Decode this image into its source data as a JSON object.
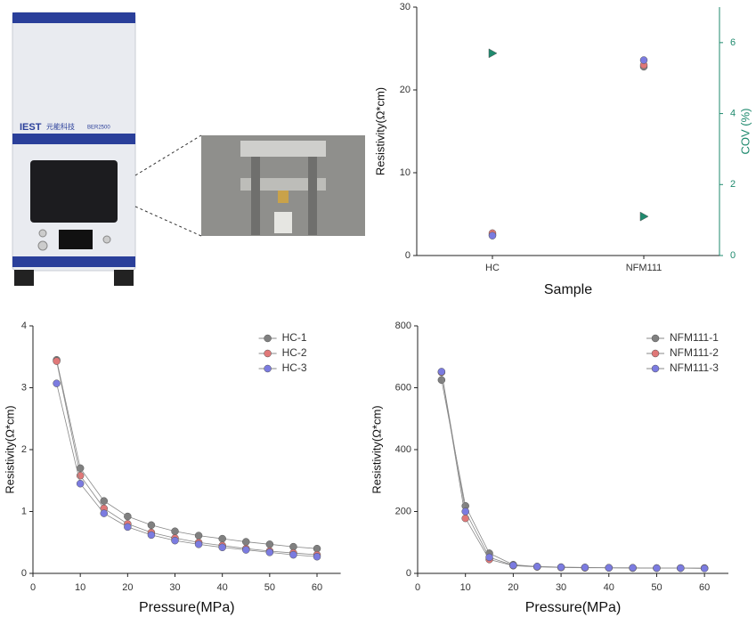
{
  "device": {
    "brand": "IEST",
    "name": "元能科技",
    "model": "BER2500"
  },
  "chart_data": [
    {
      "type": "scatter",
      "categories": [
        "HC",
        "NFM111"
      ],
      "xlabel": "Sample",
      "ylabel": "Resistivity(Ω*cm)",
      "y2label": "COV (%)",
      "ylim": [
        0,
        30
      ],
      "yticks": [
        0,
        10,
        20,
        30
      ],
      "y2lim": [
        0,
        7
      ],
      "y2ticks": [
        0,
        2,
        4,
        6
      ],
      "y2color": "#1f8a6e",
      "series": [
        {
          "color": "#8a8a8a",
          "values": [
            2.5,
            22.8
          ]
        },
        {
          "color": "#e07878",
          "values": [
            2.7,
            23.0
          ]
        },
        {
          "color": "#7b7be0",
          "values": [
            2.4,
            23.6
          ]
        },
        {
          "color": "#1f8a6e",
          "marker": "triangle",
          "axis": "y2",
          "values": [
            5.7,
            1.1
          ]
        }
      ]
    },
    {
      "type": "line",
      "xlabel": "Pressure(MPa)",
      "ylabel": "Resistivity(Ω*cm)",
      "x": [
        5,
        10,
        15,
        20,
        25,
        30,
        35,
        40,
        45,
        50,
        55,
        60
      ],
      "xlim": [
        0,
        65
      ],
      "xticks": [
        0,
        10,
        20,
        30,
        40,
        50,
        60
      ],
      "ylim": [
        0,
        4
      ],
      "yticks": [
        0,
        1,
        2,
        3,
        4
      ],
      "legend": "upper right",
      "series": [
        {
          "name": "HC-1",
          "color": "#808080",
          "values": [
            3.45,
            1.7,
            1.17,
            0.92,
            0.78,
            0.68,
            0.61,
            0.56,
            0.51,
            0.47,
            0.43,
            0.4
          ]
        },
        {
          "name": "HC-2",
          "color": "#e07878",
          "values": [
            3.43,
            1.58,
            1.05,
            0.8,
            0.66,
            0.57,
            0.5,
            0.45,
            0.4,
            0.36,
            0.33,
            0.3
          ]
        },
        {
          "name": "HC-3",
          "color": "#7b7be0",
          "values": [
            3.07,
            1.45,
            0.97,
            0.75,
            0.62,
            0.53,
            0.47,
            0.42,
            0.38,
            0.34,
            0.3,
            0.27
          ]
        }
      ]
    },
    {
      "type": "line",
      "xlabel": "Pressure(MPa)",
      "ylabel": "Resistivity(Ω*cm)",
      "x": [
        5,
        10,
        15,
        20,
        25,
        30,
        35,
        40,
        45,
        50,
        55,
        60
      ],
      "xlim": [
        0,
        65
      ],
      "xticks": [
        0,
        10,
        20,
        30,
        40,
        50,
        60
      ],
      "ylim": [
        0,
        800
      ],
      "yticks": [
        0,
        200,
        400,
        600,
        800
      ],
      "legend": "upper right",
      "series": [
        {
          "name": "NFM111-1",
          "color": "#808080",
          "values": [
            625,
            218,
            65,
            28,
            22,
            20,
            19,
            18,
            18,
            17,
            17,
            17
          ]
        },
        {
          "name": "NFM111-2",
          "color": "#e07878",
          "values": [
            650,
            178,
            45,
            25,
            21,
            19,
            18,
            18,
            17,
            17,
            17,
            17
          ]
        },
        {
          "name": "NFM111-3",
          "color": "#7b7be0",
          "values": [
            652,
            200,
            52,
            26,
            22,
            20,
            19,
            18,
            18,
            17,
            17,
            16
          ]
        }
      ]
    }
  ]
}
